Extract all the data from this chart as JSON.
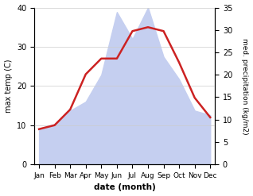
{
  "months": [
    "Jan",
    "Feb",
    "Mar",
    "Apr",
    "May",
    "Jun",
    "Jul",
    "Aug",
    "Sep",
    "Oct",
    "Nov",
    "Dec"
  ],
  "month_positions": [
    0,
    1,
    2,
    3,
    4,
    5,
    6,
    7,
    8,
    9,
    10,
    11
  ],
  "temperature": [
    9,
    10,
    14,
    23,
    27,
    27,
    34,
    35,
    34,
    26,
    17,
    12
  ],
  "precipitation": [
    8,
    9,
    12,
    14,
    20,
    34,
    28,
    35,
    24,
    19,
    12,
    11
  ],
  "temp_color": "#cc2222",
  "precip_fill_color": "#c5cff0",
  "temp_ylim": [
    0,
    40
  ],
  "precip_ylim": [
    0,
    35
  ],
  "temp_yticks": [
    0,
    10,
    20,
    30,
    40
  ],
  "precip_yticks": [
    0,
    5,
    10,
    15,
    20,
    25,
    30,
    35
  ],
  "ylabel_left": "max temp (C)",
  "ylabel_right": "med. precipitation (kg/m2)",
  "xlabel": "date (month)",
  "bg_color": "#ffffff"
}
